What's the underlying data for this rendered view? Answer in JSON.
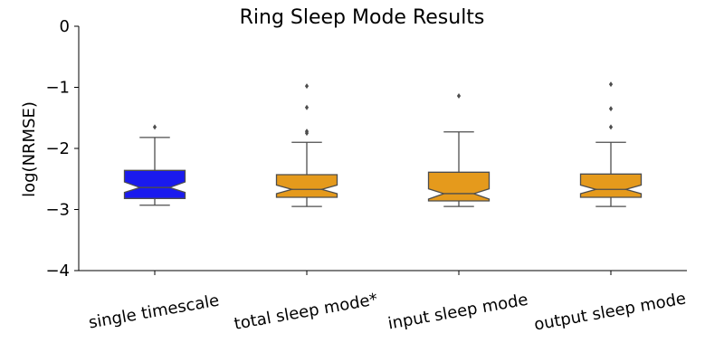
{
  "chart_data": {
    "type": "boxplot",
    "title": "Ring Sleep Mode Results",
    "xlabel": "",
    "ylabel": "log(NRMSE)",
    "ylim": [
      -4,
      0
    ],
    "yticks": [
      0,
      -1,
      -2,
      -3,
      -4
    ],
    "ytick_labels": [
      "0",
      "−1",
      "−2",
      "−3",
      "−4"
    ],
    "grid": false,
    "notched": true,
    "categories": [
      "single timescale",
      "total sleep mode*",
      "input sleep mode",
      "output sleep mode"
    ],
    "colors": [
      "#1a1aee",
      "#e59a1c",
      "#e59a1c",
      "#e59a1c"
    ],
    "boxes": [
      {
        "whislo": -2.93,
        "q1": -2.82,
        "notch_lo": -2.72,
        "med": -2.64,
        "notch_hi": -2.55,
        "q3": -2.36,
        "whishi": -1.82,
        "fliers": [
          -1.65
        ]
      },
      {
        "whislo": -2.95,
        "q1": -2.8,
        "notch_lo": -2.74,
        "med": -2.67,
        "notch_hi": -2.6,
        "q3": -2.43,
        "whishi": -1.9,
        "fliers": [
          -1.72,
          -1.75,
          -1.33,
          -0.98
        ]
      },
      {
        "whislo": -2.95,
        "q1": -2.86,
        "notch_lo": -2.83,
        "med": -2.74,
        "notch_hi": -2.66,
        "q3": -2.39,
        "whishi": -1.73,
        "fliers": [
          -1.14
        ]
      },
      {
        "whislo": -2.95,
        "q1": -2.8,
        "notch_lo": -2.74,
        "med": -2.67,
        "notch_hi": -2.6,
        "q3": -2.42,
        "whishi": -1.9,
        "fliers": [
          -1.65,
          -1.35,
          -0.95
        ]
      }
    ]
  }
}
